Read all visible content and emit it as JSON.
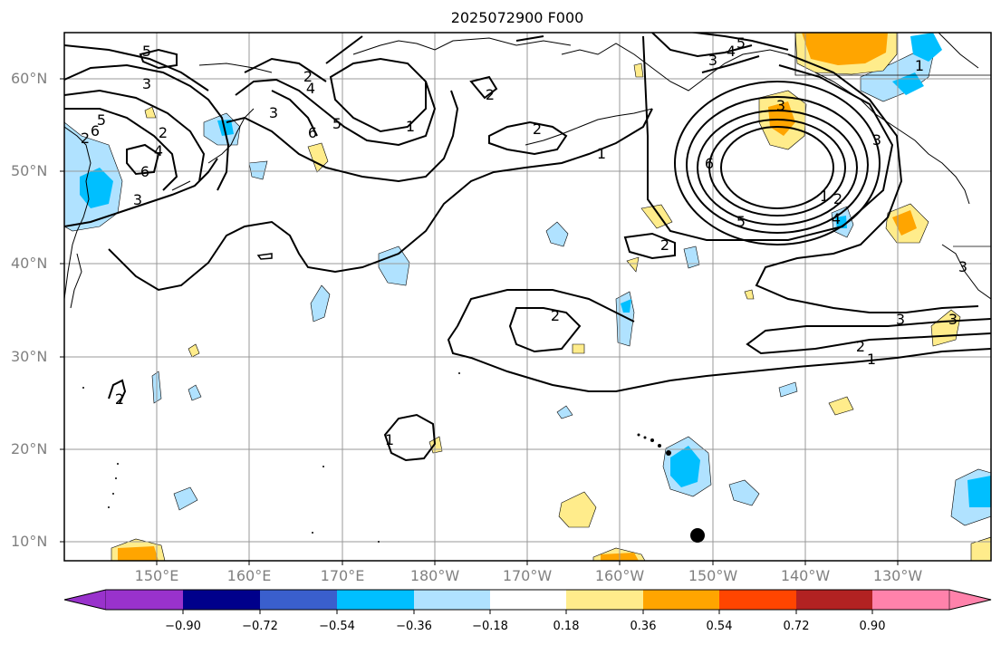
{
  "title": "2025072900 F000",
  "lat_labels": [
    "60°N",
    "50°N",
    "40°N",
    "30°N",
    "20°N",
    "10°N"
  ],
  "lon_labels": [
    "150°E",
    "160°E",
    "170°E",
    "180°W",
    "170°W",
    "160°W",
    "150°W",
    "140°W",
    "130°W"
  ],
  "contour_labels": [
    "5",
    "3",
    "2",
    "6",
    "4",
    "5",
    "2",
    "6",
    "3",
    "4",
    "5",
    "3",
    "6",
    "2",
    "1",
    "2",
    "2",
    "1",
    "2",
    "2",
    "1",
    "2",
    "3",
    "3",
    "3",
    "4",
    "5",
    "6",
    "1",
    "3",
    "2",
    "1",
    "5",
    "4",
    "3",
    "3",
    "2",
    "1"
  ],
  "colorbar": {
    "ticks": [
      "−0.90",
      "−0.72",
      "−0.54",
      "−0.36",
      "−0.18",
      "0.18",
      "0.36",
      "0.54",
      "0.72",
      "0.90"
    ],
    "colors": [
      "#9932cc",
      "#00008b",
      "#3a5fcd",
      "#00bfff",
      "#b0e2ff",
      "#ffffff",
      "#ffec8b",
      "#ffa500",
      "#ff4500",
      "#b22222",
      "#ff82ab"
    ]
  },
  "shading_colors": {
    "neg_light": "#b0e2ff",
    "neg_mid": "#00bfff",
    "pos_light": "#ffec8b",
    "pos_mid": "#ffa500"
  }
}
